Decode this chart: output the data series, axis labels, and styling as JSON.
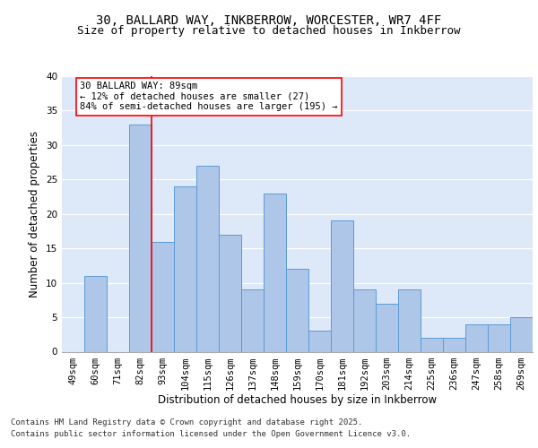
{
  "title_line1": "30, BALLARD WAY, INKBERROW, WORCESTER, WR7 4FF",
  "title_line2": "Size of property relative to detached houses in Inkberrow",
  "xlabel": "Distribution of detached houses by size in Inkberrow",
  "ylabel": "Number of detached properties",
  "categories": [
    "49sqm",
    "60sqm",
    "71sqm",
    "82sqm",
    "93sqm",
    "104sqm",
    "115sqm",
    "126sqm",
    "137sqm",
    "148sqm",
    "159sqm",
    "170sqm",
    "181sqm",
    "192sqm",
    "203sqm",
    "214sqm",
    "225sqm",
    "236sqm",
    "247sqm",
    "258sqm",
    "269sqm"
  ],
  "values": [
    0,
    11,
    0,
    33,
    16,
    24,
    27,
    17,
    9,
    23,
    12,
    3,
    19,
    9,
    7,
    9,
    2,
    2,
    4,
    4,
    5
  ],
  "bar_color": "#aec6e8",
  "bar_edge_color": "#5b9bd5",
  "background_color": "#dde8f8",
  "annotation_box_text": "30 BALLARD WAY: 89sqm\n← 12% of detached houses are smaller (27)\n84% of semi-detached houses are larger (195) →",
  "red_line_x": 3.5,
  "ylim": [
    0,
    40
  ],
  "yticks": [
    0,
    5,
    10,
    15,
    20,
    25,
    30,
    35,
    40
  ],
  "footer_line1": "Contains HM Land Registry data © Crown copyright and database right 2025.",
  "footer_line2": "Contains public sector information licensed under the Open Government Licence v3.0.",
  "title_fontsize": 10,
  "subtitle_fontsize": 9,
  "axis_label_fontsize": 8.5,
  "tick_fontsize": 7.5,
  "annotation_fontsize": 7.5,
  "footer_fontsize": 6.5
}
